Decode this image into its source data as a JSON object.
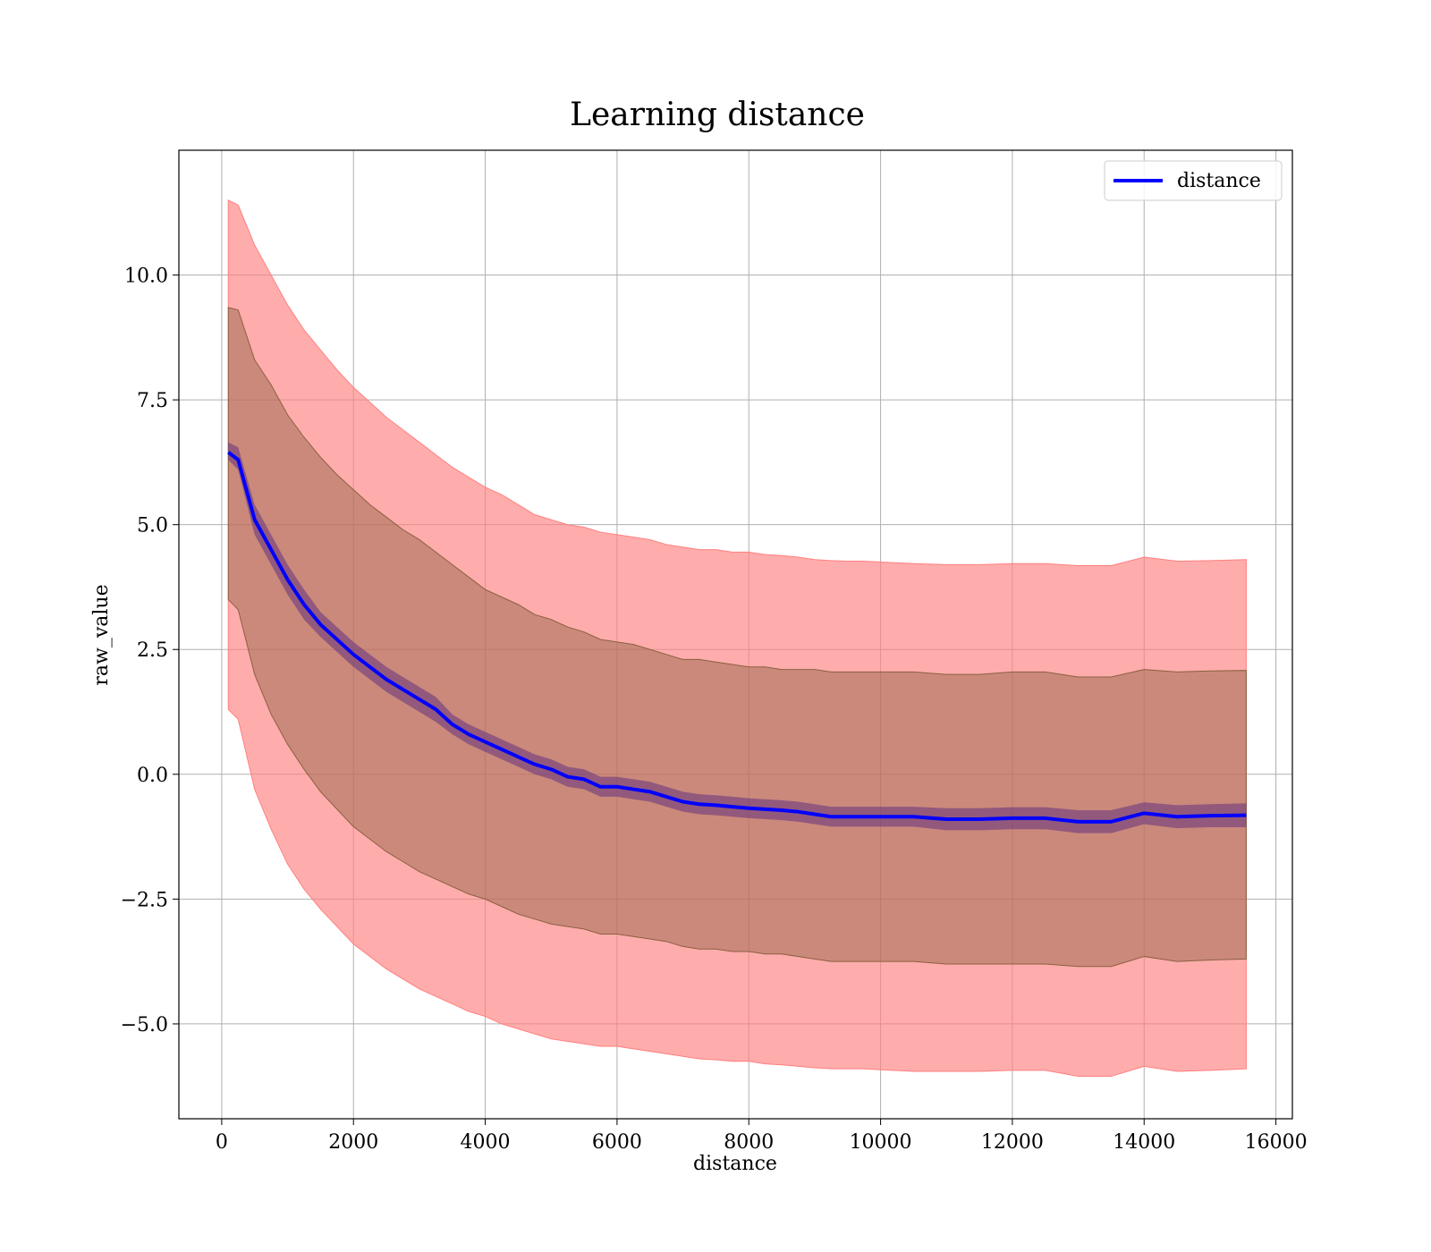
{
  "chart_data": {
    "type": "line",
    "title": "Learning distance",
    "xlabel": "distance",
    "ylabel": "raw_value",
    "xlim": [
      -650,
      16250
    ],
    "ylim": [
      -6.9,
      12.5
    ],
    "xticks": [
      0,
      2000,
      4000,
      6000,
      8000,
      10000,
      12000,
      14000,
      16000
    ],
    "xtick_labels": [
      "0",
      "2000",
      "4000",
      "6000",
      "8000",
      "10000",
      "12000",
      "14000",
      "16000"
    ],
    "yticks": [
      -5.0,
      -2.5,
      0.0,
      2.5,
      5.0,
      7.5,
      10.0
    ],
    "ytick_labels": [
      "−5.0",
      "−2.5",
      "0.0",
      "2.5",
      "5.0",
      "7.5",
      "10.0"
    ],
    "grid": true,
    "legend": {
      "position": "top-right",
      "entries": [
        "distance"
      ]
    },
    "colors": {
      "line": "#0000ff",
      "outer_band": "#ff8080",
      "inner_band": "#8b6040",
      "mean_band": "#5a2a80"
    },
    "series": [
      {
        "name": "distance",
        "x": [
          100,
          250,
          500,
          750,
          1000,
          1250,
          1500,
          1750,
          2000,
          2250,
          2500,
          2750,
          3000,
          3250,
          3500,
          3750,
          4000,
          4250,
          4500,
          4750,
          5000,
          5250,
          5500,
          5750,
          6000,
          6250,
          6500,
          6750,
          7000,
          7250,
          7500,
          7750,
          8000,
          8250,
          8500,
          8750,
          9000,
          9250,
          9500,
          9750,
          10000,
          10500,
          11000,
          11500,
          12000,
          12500,
          13000,
          13500,
          14000,
          14500,
          15000,
          15550
        ],
        "values": [
          6.45,
          6.3,
          5.1,
          4.5,
          3.9,
          3.4,
          3.0,
          2.7,
          2.4,
          2.15,
          1.9,
          1.7,
          1.5,
          1.3,
          1.0,
          0.8,
          0.65,
          0.5,
          0.35,
          0.2,
          0.1,
          -0.05,
          -0.1,
          -0.25,
          -0.25,
          -0.3,
          -0.35,
          -0.45,
          -0.55,
          -0.6,
          -0.62,
          -0.65,
          -0.68,
          -0.7,
          -0.72,
          -0.75,
          -0.8,
          -0.85,
          -0.85,
          -0.85,
          -0.85,
          -0.85,
          -0.9,
          -0.9,
          -0.88,
          -0.88,
          -0.95,
          -0.95,
          -0.78,
          -0.85,
          -0.83,
          -0.82
        ],
        "mean_band_lower": [
          6.3,
          6.1,
          4.8,
          4.2,
          3.6,
          3.1,
          2.75,
          2.45,
          2.15,
          1.9,
          1.65,
          1.45,
          1.25,
          1.05,
          0.8,
          0.6,
          0.45,
          0.3,
          0.15,
          0.0,
          -0.1,
          -0.25,
          -0.3,
          -0.45,
          -0.45,
          -0.5,
          -0.55,
          -0.65,
          -0.75,
          -0.8,
          -0.82,
          -0.85,
          -0.88,
          -0.9,
          -0.92,
          -0.95,
          -1.0,
          -1.05,
          -1.05,
          -1.05,
          -1.05,
          -1.05,
          -1.12,
          -1.12,
          -1.1,
          -1.1,
          -1.18,
          -1.18,
          -1.0,
          -1.08,
          -1.06,
          -1.06
        ],
        "mean_band_upper": [
          6.65,
          6.55,
          5.4,
          4.8,
          4.2,
          3.7,
          3.25,
          2.95,
          2.65,
          2.4,
          2.15,
          1.95,
          1.75,
          1.55,
          1.2,
          1.0,
          0.85,
          0.7,
          0.55,
          0.4,
          0.3,
          0.15,
          0.1,
          -0.05,
          -0.05,
          -0.1,
          -0.15,
          -0.25,
          -0.35,
          -0.4,
          -0.42,
          -0.45,
          -0.48,
          -0.5,
          -0.52,
          -0.55,
          -0.6,
          -0.65,
          -0.65,
          -0.65,
          -0.65,
          -0.65,
          -0.68,
          -0.68,
          -0.66,
          -0.66,
          -0.72,
          -0.72,
          -0.56,
          -0.62,
          -0.6,
          -0.58
        ],
        "inner_band_lower": [
          3.5,
          3.3,
          2.0,
          1.2,
          0.6,
          0.1,
          -0.35,
          -0.7,
          -1.05,
          -1.3,
          -1.55,
          -1.75,
          -1.95,
          -2.1,
          -2.25,
          -2.4,
          -2.5,
          -2.65,
          -2.8,
          -2.9,
          -3.0,
          -3.05,
          -3.1,
          -3.2,
          -3.2,
          -3.25,
          -3.3,
          -3.35,
          -3.45,
          -3.5,
          -3.5,
          -3.55,
          -3.55,
          -3.6,
          -3.6,
          -3.65,
          -3.7,
          -3.75,
          -3.75,
          -3.75,
          -3.75,
          -3.75,
          -3.8,
          -3.8,
          -3.8,
          -3.8,
          -3.85,
          -3.85,
          -3.65,
          -3.75,
          -3.72,
          -3.7
        ],
        "inner_band_upper": [
          9.35,
          9.3,
          8.3,
          7.8,
          7.2,
          6.75,
          6.35,
          6.0,
          5.7,
          5.4,
          5.15,
          4.9,
          4.7,
          4.45,
          4.2,
          3.95,
          3.7,
          3.55,
          3.4,
          3.2,
          3.1,
          2.95,
          2.85,
          2.7,
          2.65,
          2.6,
          2.5,
          2.4,
          2.3,
          2.3,
          2.25,
          2.2,
          2.15,
          2.15,
          2.1,
          2.1,
          2.1,
          2.05,
          2.05,
          2.05,
          2.05,
          2.05,
          2.0,
          2.0,
          2.05,
          2.05,
          1.95,
          1.95,
          2.1,
          2.05,
          2.07,
          2.08
        ],
        "outer_band_lower": [
          1.3,
          1.1,
          -0.3,
          -1.1,
          -1.8,
          -2.3,
          -2.7,
          -3.05,
          -3.4,
          -3.65,
          -3.9,
          -4.1,
          -4.3,
          -4.45,
          -4.6,
          -4.75,
          -4.85,
          -5.0,
          -5.1,
          -5.2,
          -5.3,
          -5.35,
          -5.4,
          -5.45,
          -5.45,
          -5.5,
          -5.55,
          -5.6,
          -5.65,
          -5.7,
          -5.72,
          -5.75,
          -5.75,
          -5.8,
          -5.82,
          -5.85,
          -5.88,
          -5.9,
          -5.9,
          -5.9,
          -5.92,
          -5.95,
          -5.95,
          -5.95,
          -5.93,
          -5.93,
          -6.05,
          -6.05,
          -5.85,
          -5.95,
          -5.93,
          -5.9
        ],
        "outer_band_upper": [
          11.5,
          11.4,
          10.6,
          10.0,
          9.4,
          8.9,
          8.5,
          8.1,
          7.75,
          7.45,
          7.15,
          6.9,
          6.65,
          6.4,
          6.15,
          5.95,
          5.75,
          5.6,
          5.4,
          5.2,
          5.1,
          5.0,
          4.95,
          4.85,
          4.8,
          4.75,
          4.7,
          4.6,
          4.55,
          4.5,
          4.5,
          4.45,
          4.45,
          4.4,
          4.38,
          4.35,
          4.3,
          4.28,
          4.27,
          4.27,
          4.25,
          4.22,
          4.2,
          4.2,
          4.22,
          4.22,
          4.18,
          4.18,
          4.35,
          4.27,
          4.28,
          4.3
        ]
      }
    ]
  }
}
